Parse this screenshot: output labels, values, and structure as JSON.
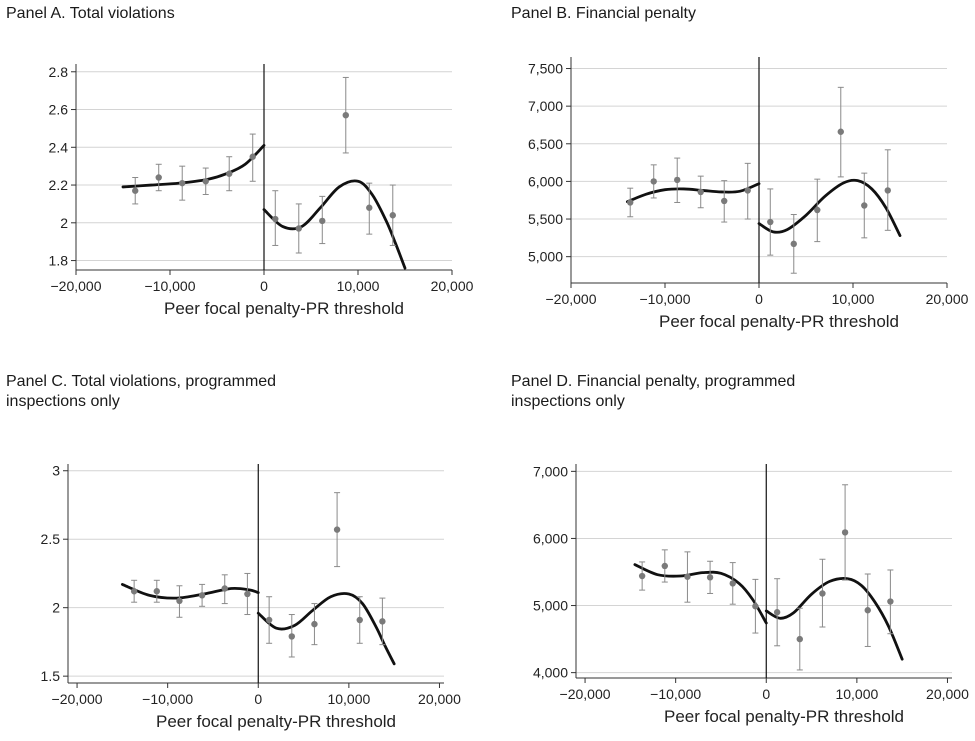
{
  "chart_data": [
    {
      "type": "scatter",
      "title": "Panel A. Total violations",
      "xlabel": "Peer focal penalty-PR threshold",
      "ylabel": "",
      "xlim": [
        -20000,
        20000
      ],
      "ylim": [
        1.75,
        2.82
      ],
      "xticks": [
        -20000,
        -10000,
        0,
        10000,
        20000
      ],
      "xtick_labels": [
        "−20,000",
        "−10,000",
        "0",
        "10,000",
        "20,000"
      ],
      "yticks": [
        1.8,
        2,
        2.2,
        2.4,
        2.6,
        2.8
      ],
      "ytick_labels": [
        "1.8",
        "2",
        "2.2",
        "2.4",
        "2.6",
        "2.8"
      ],
      "grid": true,
      "cutoff": 0,
      "points": [
        {
          "x": -13700,
          "y": 2.17,
          "lo": 2.1,
          "hi": 2.24
        },
        {
          "x": -11200,
          "y": 2.24,
          "lo": 2.17,
          "hi": 2.31
        },
        {
          "x": -8700,
          "y": 2.21,
          "lo": 2.12,
          "hi": 2.3
        },
        {
          "x": -6200,
          "y": 2.22,
          "lo": 2.15,
          "hi": 2.29
        },
        {
          "x": -3700,
          "y": 2.26,
          "lo": 2.17,
          "hi": 2.35
        },
        {
          "x": -1200,
          "y": 2.35,
          "lo": 2.22,
          "hi": 2.47
        },
        {
          "x": 1200,
          "y": 2.02,
          "lo": 1.88,
          "hi": 2.17
        },
        {
          "x": 3700,
          "y": 1.97,
          "lo": 1.84,
          "hi": 2.1
        },
        {
          "x": 6200,
          "y": 2.01,
          "lo": 1.89,
          "hi": 2.14
        },
        {
          "x": 8700,
          "y": 2.57,
          "lo": 2.37,
          "hi": 2.77
        },
        {
          "x": 11200,
          "y": 2.08,
          "lo": 1.94,
          "hi": 2.21
        },
        {
          "x": 13700,
          "y": 2.04,
          "lo": 1.88,
          "hi": 2.2
        }
      ],
      "fit_left": {
        "x": [
          -15000,
          -12000,
          -9000,
          -6000,
          -4000,
          -2000,
          0
        ],
        "y": [
          2.19,
          2.2,
          2.21,
          2.23,
          2.26,
          2.31,
          2.41
        ]
      },
      "fit_right": {
        "x": [
          0,
          2000,
          4000,
          6000,
          8000,
          10000,
          11500,
          13000,
          14000,
          15000
        ],
        "y": [
          2.07,
          1.98,
          1.98,
          2.08,
          2.19,
          2.22,
          2.15,
          2.01,
          1.89,
          1.76
        ]
      }
    },
    {
      "type": "scatter",
      "title": "Panel B. Financial penalty",
      "xlabel": "Peer focal penalty-PR threshold",
      "ylabel": "",
      "xlim": [
        -20000,
        20000
      ],
      "ylim": [
        4650,
        7600
      ],
      "xticks": [
        -20000,
        -10000,
        0,
        10000,
        20000
      ],
      "xtick_labels": [
        "−20,000",
        "−10,000",
        "0",
        "10,000",
        "20,000"
      ],
      "yticks": [
        5000,
        5500,
        6000,
        6500,
        7000,
        7500
      ],
      "ytick_labels": [
        "5,000",
        "5,500",
        "6,000",
        "6,500",
        "7,000",
        "7,500"
      ],
      "grid": true,
      "cutoff": 0,
      "points": [
        {
          "x": -13700,
          "y": 5720,
          "lo": 5530,
          "hi": 5910
        },
        {
          "x": -11200,
          "y": 6000,
          "lo": 5780,
          "hi": 6220
        },
        {
          "x": -8700,
          "y": 6020,
          "lo": 5720,
          "hi": 6310
        },
        {
          "x": -6200,
          "y": 5860,
          "lo": 5650,
          "hi": 6070
        },
        {
          "x": -3700,
          "y": 5740,
          "lo": 5460,
          "hi": 6010
        },
        {
          "x": -1200,
          "y": 5880,
          "lo": 5500,
          "hi": 6240
        },
        {
          "x": 1200,
          "y": 5460,
          "lo": 5020,
          "hi": 5900
        },
        {
          "x": 3700,
          "y": 5170,
          "lo": 4780,
          "hi": 5560
        },
        {
          "x": 6200,
          "y": 5620,
          "lo": 5200,
          "hi": 6030
        },
        {
          "x": 8700,
          "y": 6660,
          "lo": 6060,
          "hi": 7250
        },
        {
          "x": 11200,
          "y": 5680,
          "lo": 5250,
          "hi": 6110
        },
        {
          "x": 13700,
          "y": 5880,
          "lo": 5350,
          "hi": 6420
        }
      ],
      "fit_left": {
        "x": [
          -14000,
          -12000,
          -10000,
          -8000,
          -6000,
          -4000,
          -2000,
          0
        ],
        "y": [
          5730,
          5830,
          5890,
          5900,
          5880,
          5860,
          5870,
          5970
        ]
      },
      "fit_right": {
        "x": [
          0,
          1500,
          3000,
          5000,
          7000,
          9000,
          10500,
          12000,
          13500,
          15000
        ],
        "y": [
          5440,
          5330,
          5360,
          5550,
          5800,
          5980,
          6010,
          5900,
          5650,
          5280
        ]
      }
    },
    {
      "type": "scatter",
      "title": "Panel C. Total violations, programmed\ninspections only",
      "xlabel": "Peer focal penalty-PR threshold",
      "ylabel": "",
      "xlim": [
        -21000,
        20500
      ],
      "ylim": [
        1.45,
        3.02
      ],
      "xticks": [
        -20000,
        -10000,
        0,
        10000,
        20000
      ],
      "xtick_labels": [
        "−20,000",
        "−10,000",
        "0",
        "10,000",
        "20,000"
      ],
      "yticks": [
        1.5,
        2,
        2.5,
        3
      ],
      "ytick_labels": [
        "1.5",
        "2",
        "2.5",
        "3"
      ],
      "grid": true,
      "cutoff": 0,
      "points": [
        {
          "x": -13700,
          "y": 2.12,
          "lo": 2.04,
          "hi": 2.2
        },
        {
          "x": -11200,
          "y": 2.12,
          "lo": 2.04,
          "hi": 2.2
        },
        {
          "x": -8700,
          "y": 2.05,
          "lo": 1.93,
          "hi": 2.16
        },
        {
          "x": -6200,
          "y": 2.09,
          "lo": 2.01,
          "hi": 2.17
        },
        {
          "x": -3700,
          "y": 2.14,
          "lo": 2.03,
          "hi": 2.24
        },
        {
          "x": -1200,
          "y": 2.1,
          "lo": 1.95,
          "hi": 2.25
        },
        {
          "x": 1200,
          "y": 1.91,
          "lo": 1.74,
          "hi": 2.08
        },
        {
          "x": 3700,
          "y": 1.79,
          "lo": 1.64,
          "hi": 1.95
        },
        {
          "x": 6200,
          "y": 1.88,
          "lo": 1.73,
          "hi": 2.03
        },
        {
          "x": 8700,
          "y": 2.57,
          "lo": 2.3,
          "hi": 2.84
        },
        {
          "x": 11200,
          "y": 1.91,
          "lo": 1.74,
          "hi": 2.08
        },
        {
          "x": 13700,
          "y": 1.9,
          "lo": 1.73,
          "hi": 2.07
        }
      ],
      "fit_left": {
        "x": [
          -15000,
          -12000,
          -9000,
          -6000,
          -3000,
          -1000,
          0
        ],
        "y": [
          2.17,
          2.09,
          2.07,
          2.1,
          2.14,
          2.13,
          2.11
        ]
      },
      "fit_right": {
        "x": [
          0,
          2000,
          4000,
          6000,
          8000,
          10000,
          11500,
          13000,
          14000,
          15000
        ],
        "y": [
          1.96,
          1.85,
          1.87,
          1.98,
          2.08,
          2.1,
          2.03,
          1.86,
          1.72,
          1.59
        ]
      }
    },
    {
      "type": "scatter",
      "title": "Panel D. Financial penalty, programmed\ninspections only",
      "xlabel": "Peer focal penalty-PR threshold",
      "ylabel": "",
      "xlim": [
        -21000,
        20500
      ],
      "ylim": [
        3920,
        7050
      ],
      "xticks": [
        -20000,
        -10000,
        0,
        10000,
        20000
      ],
      "xtick_labels": [
        "−20,000",
        "−10,000",
        "0",
        "10,000",
        "20,000"
      ],
      "yticks": [
        4000,
        5000,
        6000,
        7000
      ],
      "ytick_labels": [
        "4,000",
        "5,000",
        "6,000",
        "7,000"
      ],
      "grid": true,
      "cutoff": 0,
      "points": [
        {
          "x": -13700,
          "y": 5440,
          "lo": 5230,
          "hi": 5650
        },
        {
          "x": -11200,
          "y": 5590,
          "lo": 5350,
          "hi": 5830
        },
        {
          "x": -8700,
          "y": 5430,
          "lo": 5050,
          "hi": 5800
        },
        {
          "x": -6200,
          "y": 5420,
          "lo": 5180,
          "hi": 5660
        },
        {
          "x": -3700,
          "y": 5330,
          "lo": 5020,
          "hi": 5640
        },
        {
          "x": -1200,
          "y": 4990,
          "lo": 4590,
          "hi": 5390
        },
        {
          "x": 1200,
          "y": 4900,
          "lo": 4400,
          "hi": 5400
        },
        {
          "x": 3700,
          "y": 4500,
          "lo": 4040,
          "hi": 4960
        },
        {
          "x": 6200,
          "y": 5180,
          "lo": 4680,
          "hi": 5690
        },
        {
          "x": 8700,
          "y": 6090,
          "lo": 5380,
          "hi": 6800
        },
        {
          "x": 11200,
          "y": 4930,
          "lo": 4390,
          "hi": 5470
        },
        {
          "x": 13700,
          "y": 5060,
          "lo": 4580,
          "hi": 5530
        }
      ],
      "fit_left": {
        "x": [
          -14500,
          -12000,
          -9500,
          -7000,
          -5000,
          -3000,
          -1500,
          0
        ],
        "y": [
          5610,
          5460,
          5440,
          5490,
          5480,
          5330,
          5090,
          4740
        ]
      },
      "fit_right": {
        "x": [
          0,
          1500,
          3000,
          5000,
          7000,
          9000,
          10500,
          12000,
          13500,
          15000
        ],
        "y": [
          4920,
          4810,
          4890,
          5170,
          5360,
          5400,
          5300,
          5050,
          4690,
          4200
        ]
      }
    }
  ]
}
